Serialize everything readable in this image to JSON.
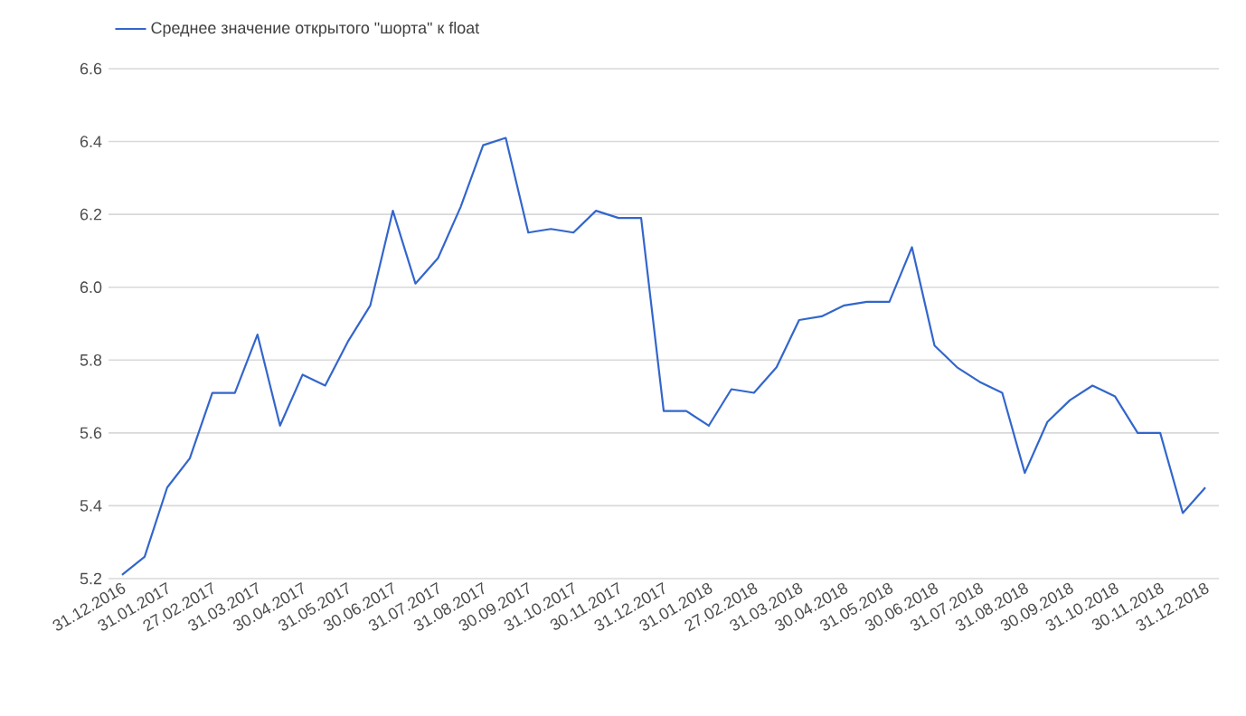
{
  "chart_data": {
    "type": "line",
    "categories": [
      "31.12.2016",
      null,
      "31.01.2017",
      null,
      "27.02.2017",
      null,
      "31.03.2017",
      null,
      "30.04.2017",
      null,
      "31.05.2017",
      null,
      "30.06.2017",
      null,
      "31.07.2017",
      null,
      "31.08.2017",
      null,
      "30.09.2017",
      null,
      "31.10.2017",
      null,
      "30.11.2017",
      null,
      "31.12.2017",
      null,
      "31.01.2018",
      null,
      "27.02.2018",
      null,
      "31.03.2018",
      null,
      "30.04.2018",
      null,
      "31.05.2018",
      null,
      "30.06.2018",
      null,
      "31.07.2018",
      null,
      "31.08.2018",
      null,
      "30.09.2018",
      null,
      "31.10.2018",
      null,
      "30.11.2018",
      null,
      "31.12.2018"
    ],
    "series": [
      {
        "name": "Среднее значение открытого \"шорта\" к float",
        "color": "#3366cc",
        "values": [
          5.21,
          5.26,
          5.45,
          5.53,
          5.71,
          5.71,
          5.87,
          5.62,
          5.76,
          5.73,
          5.85,
          5.95,
          6.21,
          6.01,
          6.08,
          6.22,
          6.39,
          6.41,
          6.15,
          6.16,
          6.15,
          6.21,
          6.19,
          6.19,
          5.66,
          5.66,
          5.62,
          5.72,
          5.71,
          5.78,
          5.91,
          5.92,
          5.95,
          5.96,
          5.96,
          6.11,
          5.84,
          5.78,
          5.74,
          5.71,
          5.49,
          5.63,
          5.69,
          5.73,
          5.7,
          5.6,
          5.6,
          5.38,
          5.45
        ]
      }
    ],
    "ylim": [
      5.2,
      6.6
    ],
    "yticks": [
      5.2,
      5.4,
      5.6,
      5.8,
      {
        "value": 6.0,
        "label": "6.0"
      },
      6.2,
      6.4,
      6.6
    ],
    "grid": "y",
    "legend": "top left",
    "marker": "none",
    "line_style": "solid"
  }
}
